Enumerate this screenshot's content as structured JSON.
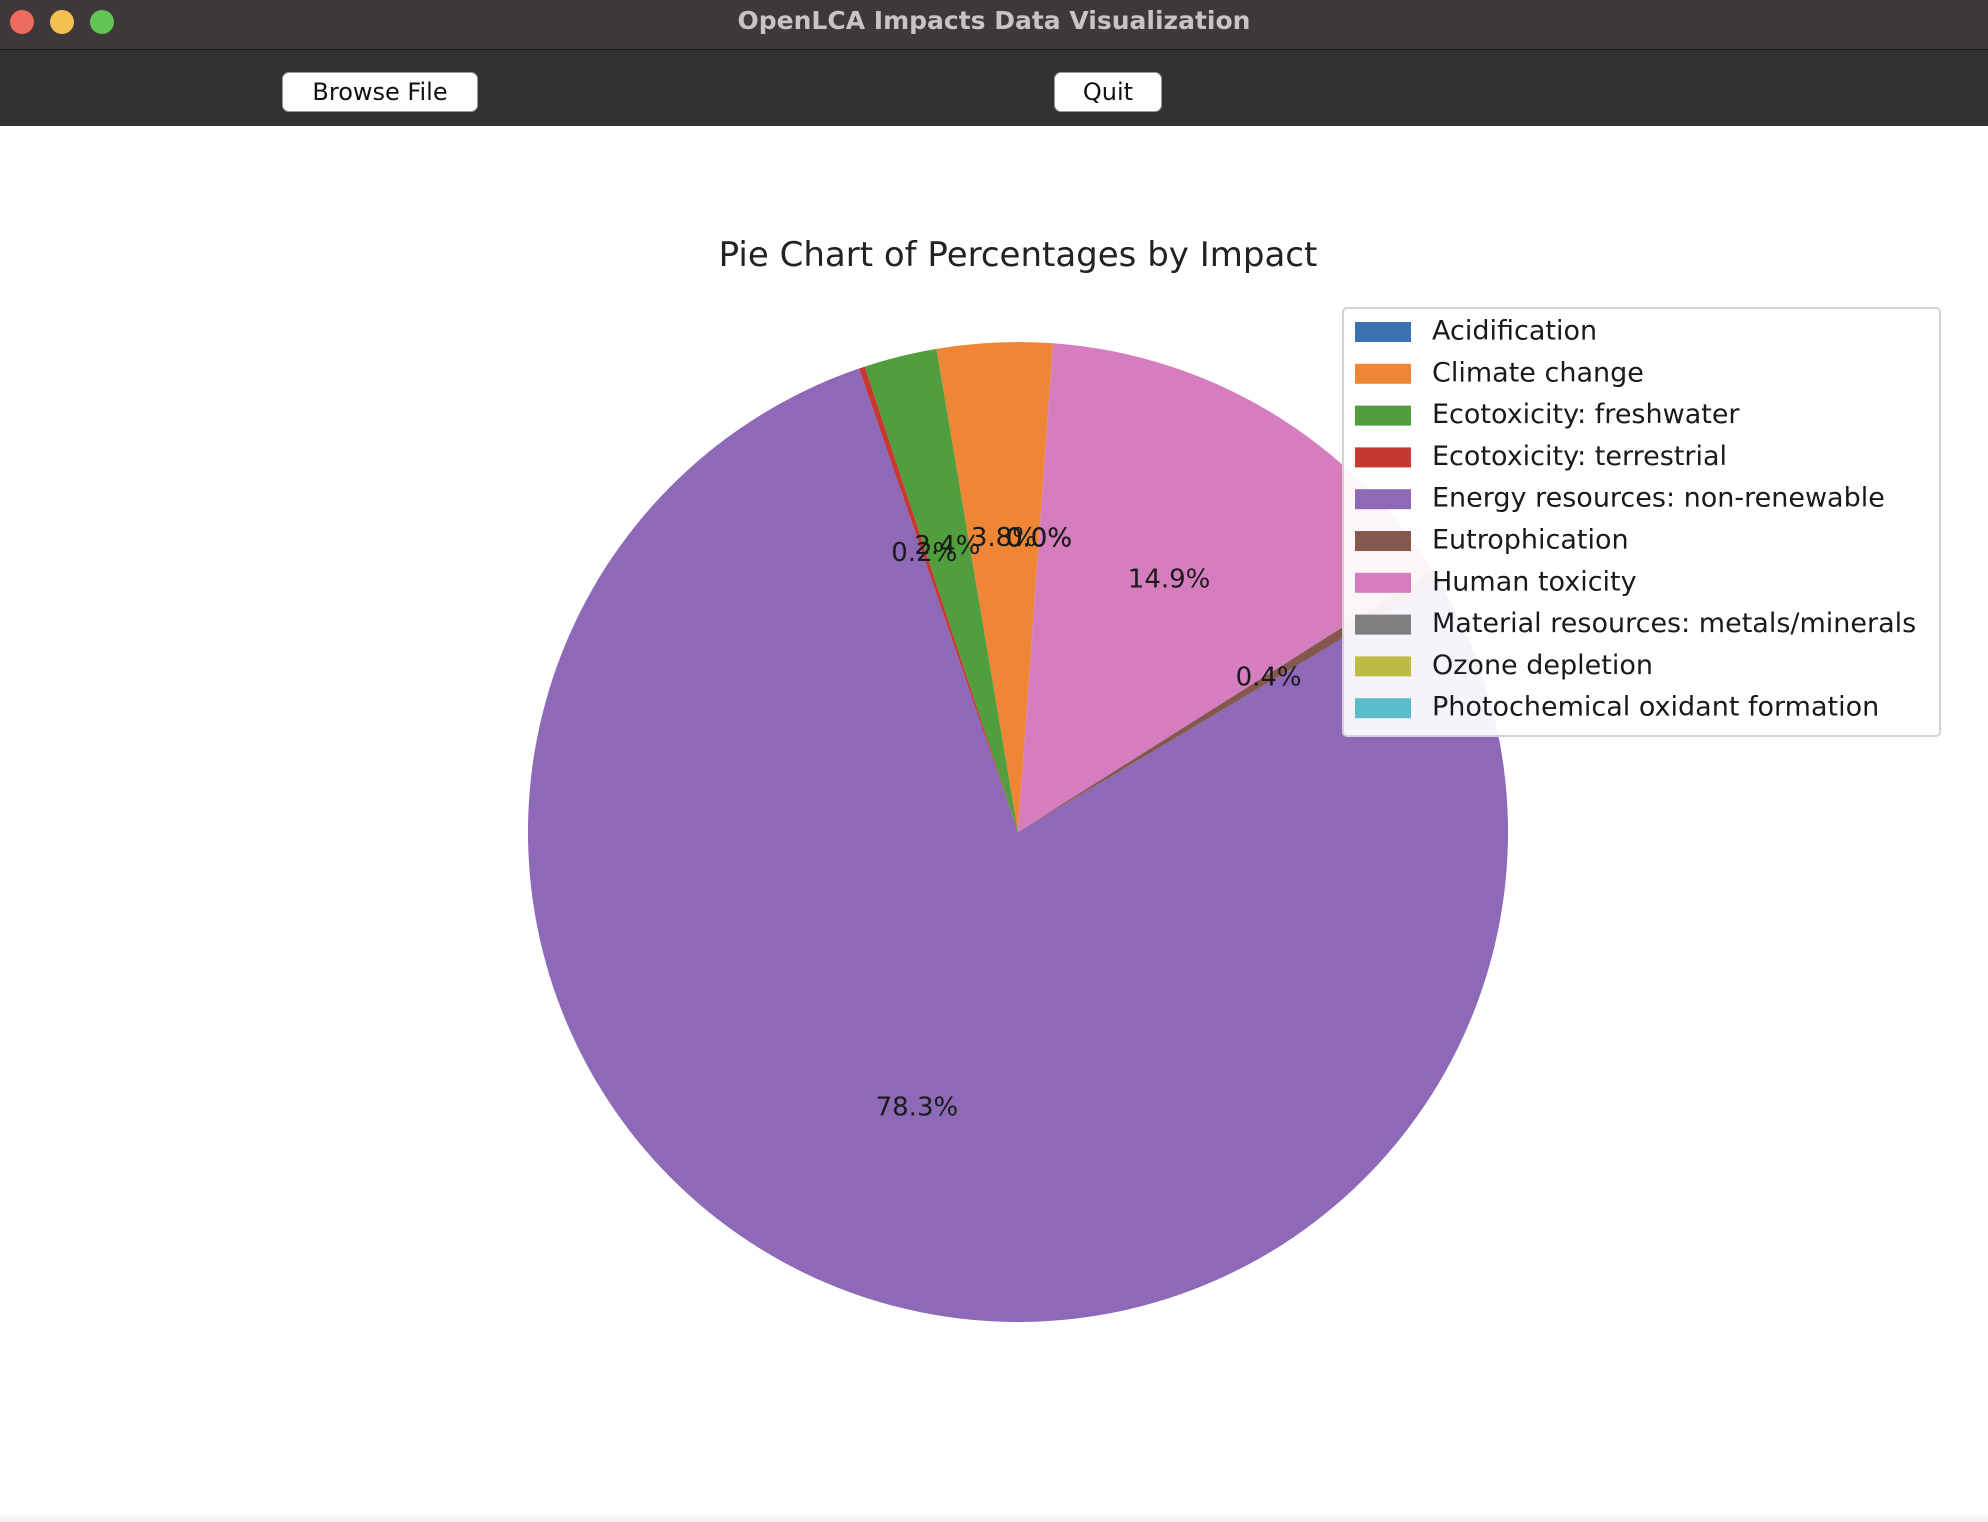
{
  "window": {
    "title": "OpenLCA Impacts Data Visualization",
    "traffic_colors": {
      "close": "#ed6a5e",
      "minimize": "#f5c04f",
      "maximize": "#61c554"
    }
  },
  "toolbar": {
    "browse_label": "Browse File",
    "quit_label": "Quit"
  },
  "chart_data": {
    "type": "pie",
    "title": "Pie Chart of Percentages by Impact",
    "start_angle_deg": 85.9,
    "direction": "counterclockwise",
    "legend_placement": "upper right",
    "slices": [
      {
        "label": "Acidification",
        "value": 0.0,
        "color": "#3a73b0",
        "pct_label": "0.0%"
      },
      {
        "label": "Climate change",
        "value": 3.8,
        "color": "#ef8636",
        "pct_label": "3.8%"
      },
      {
        "label": "Ecotoxicity: freshwater",
        "value": 2.4,
        "color": "#519e3e",
        "pct_label": "2.4%"
      },
      {
        "label": "Ecotoxicity: terrestrial",
        "value": 0.2,
        "color": "#c53932",
        "pct_label": "0.2%"
      },
      {
        "label": "Energy resources: non-renewable",
        "value": 78.3,
        "color": "#8d69b8",
        "pct_label": "78.3%"
      },
      {
        "label": "Eutrophication",
        "value": 0.4,
        "color": "#84584e",
        "pct_label": "0.4%"
      },
      {
        "label": "Human toxicity",
        "value": 14.9,
        "color": "#d57dbe",
        "pct_label": "14.9%"
      },
      {
        "label": "Material resources: metals/minerals",
        "value": 0.0,
        "color": "#7f7f7f",
        "pct_label": "0.0%"
      },
      {
        "label": "Ozone depletion",
        "value": 0.0,
        "color": "#bcbc45",
        "pct_label": "0.0%"
      },
      {
        "label": "Photochemical oxidant formation",
        "value": 0.0,
        "color": "#5bbccc",
        "pct_label": "0.0%"
      }
    ]
  }
}
